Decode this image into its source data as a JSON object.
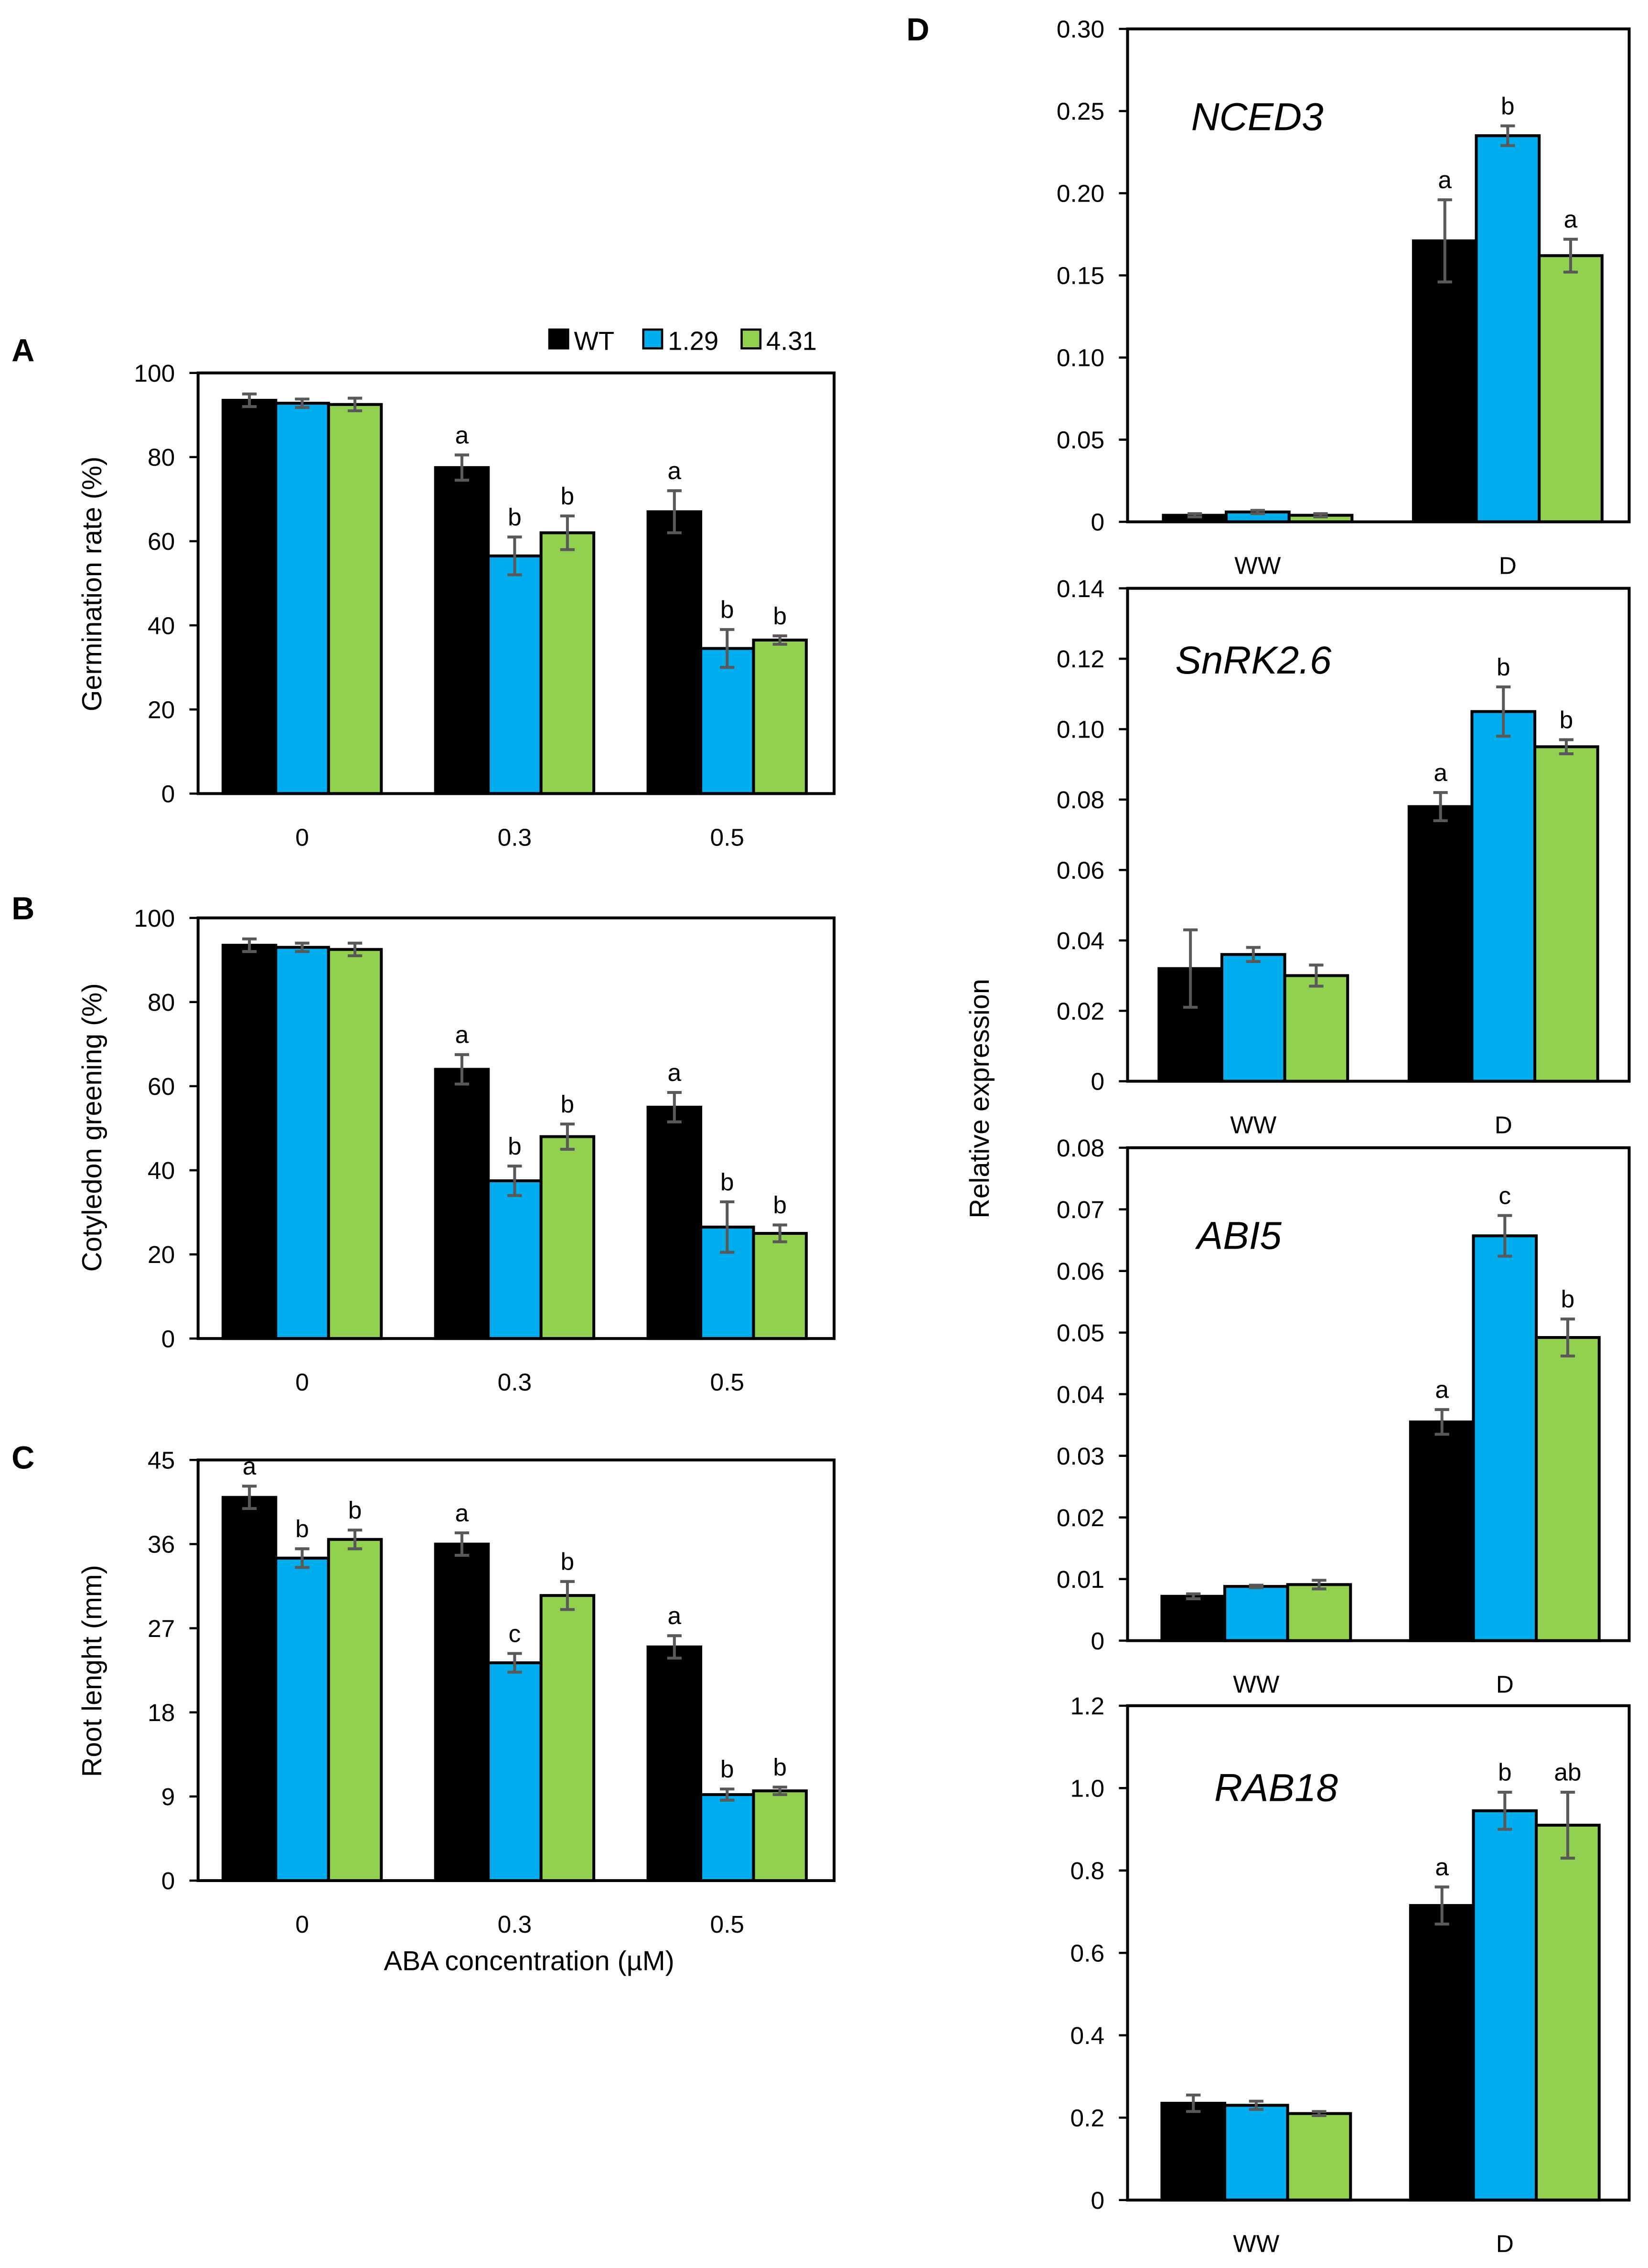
{
  "legend": [
    {
      "name": "WT",
      "color": "#000000"
    },
    {
      "name": "1.29",
      "color": "#00AEEF"
    },
    {
      "name": "4.31",
      "color": "#92D050"
    }
  ],
  "error_bar_color": "#595959",
  "shared_labels": {
    "aba_xlabel": "ABA concentration (µM)",
    "expression_ylabel": "Relative expression"
  },
  "chart_data": [
    {
      "panel": "A",
      "type": "bar",
      "ylabel": "Germination rate (%)",
      "xlabel": "",
      "categories": [
        "0",
        "0.3",
        "0.5"
      ],
      "ylim": [
        0,
        100
      ],
      "yticks": [
        "0",
        "20",
        "40",
        "60",
        "80",
        "100"
      ],
      "series": [
        {
          "name": "WT",
          "values": [
            93.5,
            77.5,
            67
          ],
          "errors": [
            1.5,
            3,
            5
          ],
          "letters": [
            "",
            "a",
            "a"
          ]
        },
        {
          "name": "1.29",
          "values": [
            92.8,
            56.5,
            34.5
          ],
          "errors": [
            1,
            4.5,
            4.5
          ],
          "letters": [
            "",
            "b",
            "b"
          ]
        },
        {
          "name": "4.31",
          "values": [
            92.5,
            62,
            36.5
          ],
          "errors": [
            1.5,
            4,
            1
          ],
          "letters": [
            "",
            "b",
            "b"
          ]
        }
      ]
    },
    {
      "panel": "B",
      "type": "bar",
      "ylabel": "Cotyledon greening (%)",
      "xlabel": "",
      "categories": [
        "0",
        "0.3",
        "0.5"
      ],
      "ylim": [
        0,
        100
      ],
      "yticks": [
        "0",
        "20",
        "40",
        "60",
        "80",
        "100"
      ],
      "series": [
        {
          "name": "WT",
          "values": [
            93.5,
            64,
            55
          ],
          "errors": [
            1.5,
            3.5,
            3.5
          ],
          "letters": [
            "",
            "a",
            "a"
          ]
        },
        {
          "name": "1.29",
          "values": [
            93,
            37.5,
            26.5
          ],
          "errors": [
            1,
            3.5,
            6
          ],
          "letters": [
            "",
            "b",
            "b"
          ]
        },
        {
          "name": "4.31",
          "values": [
            92.5,
            48,
            25
          ],
          "errors": [
            1.5,
            3,
            2
          ],
          "letters": [
            "",
            "b",
            "b"
          ]
        }
      ]
    },
    {
      "panel": "C",
      "type": "bar",
      "ylabel": "Root lenght (mm)",
      "xlabel": "ABA concentration (µM)",
      "categories": [
        "0",
        "0.3",
        "0.5"
      ],
      "ylim": [
        0,
        45
      ],
      "yticks": [
        "0",
        "9",
        "18",
        "27",
        "36",
        "45"
      ],
      "series": [
        {
          "name": "WT",
          "values": [
            41,
            36,
            25
          ],
          "errors": [
            1.2,
            1.2,
            1.2
          ],
          "letters": [
            "a",
            "a",
            "a"
          ]
        },
        {
          "name": "1.29",
          "values": [
            34.5,
            23.3,
            9.2
          ],
          "errors": [
            1,
            1,
            0.6
          ],
          "letters": [
            "b",
            "c",
            "b"
          ]
        },
        {
          "name": "4.31",
          "values": [
            36.5,
            30.5,
            9.6
          ],
          "errors": [
            1,
            1.5,
            0.4
          ],
          "letters": [
            "b",
            "b",
            "b"
          ]
        }
      ]
    },
    {
      "panel": "D",
      "gene": "NCED3",
      "type": "bar",
      "ylabel": "Relative expression",
      "categories": [
        "WW",
        "D"
      ],
      "ylim": [
        0,
        0.3
      ],
      "yticks": [
        "0",
        "0.05",
        "0.10",
        "0.15",
        "0.20",
        "0.25",
        "0.30"
      ],
      "series": [
        {
          "name": "WT",
          "values": [
            0.004,
            0.171
          ],
          "errors": [
            0.001,
            0.025
          ],
          "letters": [
            "",
            "a"
          ]
        },
        {
          "name": "1.29",
          "values": [
            0.006,
            0.235
          ],
          "errors": [
            0.001,
            0.006
          ],
          "letters": [
            "",
            "b"
          ]
        },
        {
          "name": "4.31",
          "values": [
            0.004,
            0.162
          ],
          "errors": [
            0.001,
            0.01
          ],
          "letters": [
            "",
            "a"
          ]
        }
      ]
    },
    {
      "panel": "",
      "gene": "SnRK2.6",
      "type": "bar",
      "ylabel": "",
      "categories": [
        "WW",
        "D"
      ],
      "ylim": [
        0,
        0.14
      ],
      "yticks": [
        "0",
        "0.02",
        "0.04",
        "0.06",
        "0.08",
        "0.10",
        "0.12",
        "0.14"
      ],
      "series": [
        {
          "name": "WT",
          "values": [
            0.032,
            0.078
          ],
          "errors": [
            0.011,
            0.004
          ],
          "letters": [
            "",
            "a"
          ]
        },
        {
          "name": "1.29",
          "values": [
            0.036,
            0.105
          ],
          "errors": [
            0.002,
            0.007
          ],
          "letters": [
            "",
            "b"
          ]
        },
        {
          "name": "4.31",
          "values": [
            0.03,
            0.095
          ],
          "errors": [
            0.003,
            0.002
          ],
          "letters": [
            "",
            "b"
          ]
        }
      ]
    },
    {
      "panel": "",
      "gene": "ABI5",
      "type": "bar",
      "ylabel": "",
      "categories": [
        "WW",
        "D"
      ],
      "ylim": [
        0,
        0.08
      ],
      "yticks": [
        "0",
        "0.01",
        "0.02",
        "0.03",
        "0.04",
        "0.05",
        "0.06",
        "0.07",
        "0.08"
      ],
      "series": [
        {
          "name": "WT",
          "values": [
            0.0072,
            0.0355
          ],
          "errors": [
            0.0004,
            0.002
          ],
          "letters": [
            "",
            "a"
          ]
        },
        {
          "name": "1.29",
          "values": [
            0.0088,
            0.0657
          ],
          "errors": [
            0.0002,
            0.0033
          ],
          "letters": [
            "",
            "c"
          ]
        },
        {
          "name": "4.31",
          "values": [
            0.0091,
            0.0492
          ],
          "errors": [
            0.0007,
            0.003
          ],
          "letters": [
            "",
            "b"
          ]
        }
      ]
    },
    {
      "panel": "",
      "gene": "RAB18",
      "type": "bar",
      "ylabel": "",
      "categories": [
        "WW",
        "D"
      ],
      "ylim": [
        0,
        1.2
      ],
      "yticks": [
        "0",
        "0.2",
        "0.4",
        "0.6",
        "0.8",
        "1.0",
        "1.2"
      ],
      "series": [
        {
          "name": "WT",
          "values": [
            0.235,
            0.715
          ],
          "errors": [
            0.02,
            0.045
          ],
          "letters": [
            "",
            "a"
          ]
        },
        {
          "name": "1.29",
          "values": [
            0.23,
            0.945
          ],
          "errors": [
            0.01,
            0.045
          ],
          "letters": [
            "",
            "b"
          ]
        },
        {
          "name": "4.31",
          "values": [
            0.21,
            0.91
          ],
          "errors": [
            0.005,
            0.08
          ],
          "letters": [
            "",
            "ab"
          ]
        }
      ]
    }
  ]
}
